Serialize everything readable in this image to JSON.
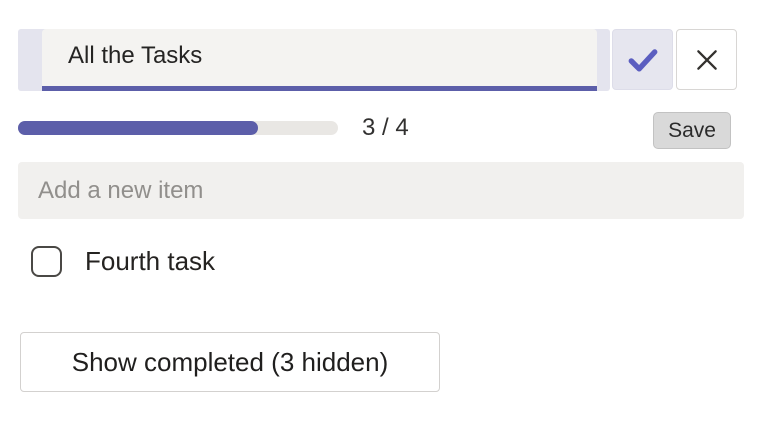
{
  "title_editor": {
    "input_value": "All the Tasks",
    "confirm_icon": "checkmark-icon",
    "cancel_icon": "close-icon"
  },
  "progress": {
    "completed": 3,
    "total": 4,
    "label": "3 / 4",
    "fraction": 0.75
  },
  "toolbar": {
    "save_label": "Save"
  },
  "add_item": {
    "placeholder": "Add a new item"
  },
  "tasks": [
    {
      "label": "Fourth task",
      "checked": false
    }
  ],
  "show_completed": {
    "label": "Show completed (3 hidden)",
    "hidden_count": 3
  },
  "colors": {
    "accent_purple": "#5c5ea9",
    "check_icon_purple": "#5b5ec0",
    "row_lavender": "#e4e4ee",
    "field_gray": "#f1f0ee",
    "track_gray": "#e9e7e4",
    "save_gray": "#d9d9d9"
  }
}
